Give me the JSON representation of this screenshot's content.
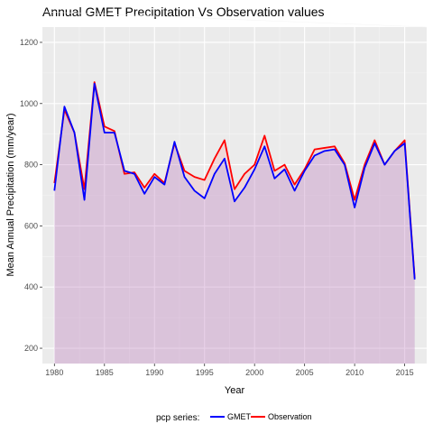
{
  "chart_data": {
    "type": "line",
    "title": "Annual GMET Precipitation Vs Observation values",
    "xlabel": "Year",
    "ylabel": "Mean Annual Precipitation (mm/year)",
    "xlim": [
      1978.8,
      2017.2
    ],
    "ylim": [
      150,
      1250
    ],
    "x_ticks": [
      1980,
      1985,
      1990,
      1995,
      2000,
      2005,
      2010,
      2015
    ],
    "y_ticks": [
      200,
      400,
      600,
      800,
      1000,
      1200
    ],
    "grid": true,
    "panel_background": "#ebebeb",
    "legend": {
      "title": "pcp series:",
      "position": "bottom"
    },
    "x": [
      1980,
      1981,
      1982,
      1983,
      1984,
      1985,
      1986,
      1987,
      1988,
      1989,
      1990,
      1991,
      1992,
      1993,
      1994,
      1995,
      1996,
      1997,
      1998,
      1999,
      2000,
      2001,
      2002,
      2003,
      2004,
      2005,
      2006,
      2007,
      2008,
      2009,
      2010,
      2011,
      2012,
      2013,
      2014,
      2015,
      2016
    ],
    "series": [
      {
        "name": "GMET",
        "color": "#0000ff",
        "fill": "#6666ff",
        "values": [
          715,
          990,
          905,
          685,
          1065,
          905,
          905,
          780,
          770,
          705,
          760,
          735,
          875,
          760,
          715,
          690,
          770,
          820,
          680,
          725,
          785,
          860,
          755,
          785,
          715,
          780,
          830,
          845,
          850,
          800,
          660,
          790,
          870,
          800,
          845,
          870,
          425
        ]
      },
      {
        "name": "Observation",
        "color": "#ff0000",
        "fill": "#ff8080",
        "values": [
          740,
          980,
          905,
          720,
          1070,
          925,
          910,
          770,
          775,
          725,
          770,
          740,
          870,
          780,
          760,
          750,
          820,
          880,
          720,
          770,
          800,
          895,
          780,
          800,
          735,
          785,
          850,
          855,
          860,
          805,
          685,
          800,
          880,
          800,
          845,
          880,
          430
        ]
      }
    ]
  }
}
